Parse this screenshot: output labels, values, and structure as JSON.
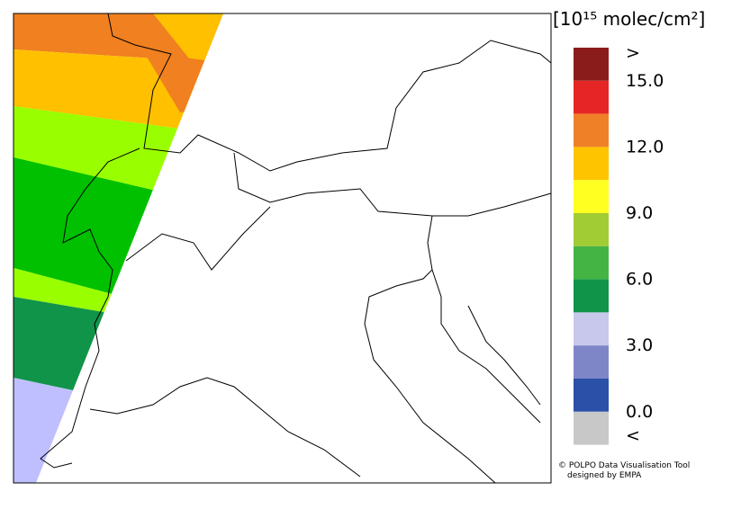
{
  "colorbar": {
    "unit": "[10¹⁵ molec/cm²]",
    "colors": [
      "#8b1c1c",
      "#e62626",
      "#f08028",
      "#ffc400",
      "#ffff22",
      "#a2cc34",
      "#44b444",
      "#10944a",
      "#c8c8ec",
      "#7f86c8",
      "#2a50a8",
      "#c8c8c8"
    ],
    "labels": [
      ">",
      "15.0",
      "12.0",
      "9.0",
      "6.0",
      "3.0",
      "0.0",
      "<"
    ]
  },
  "credits": [
    "© POLPO Data Visualisation Tool",
    "designed by EMPA"
  ]
}
